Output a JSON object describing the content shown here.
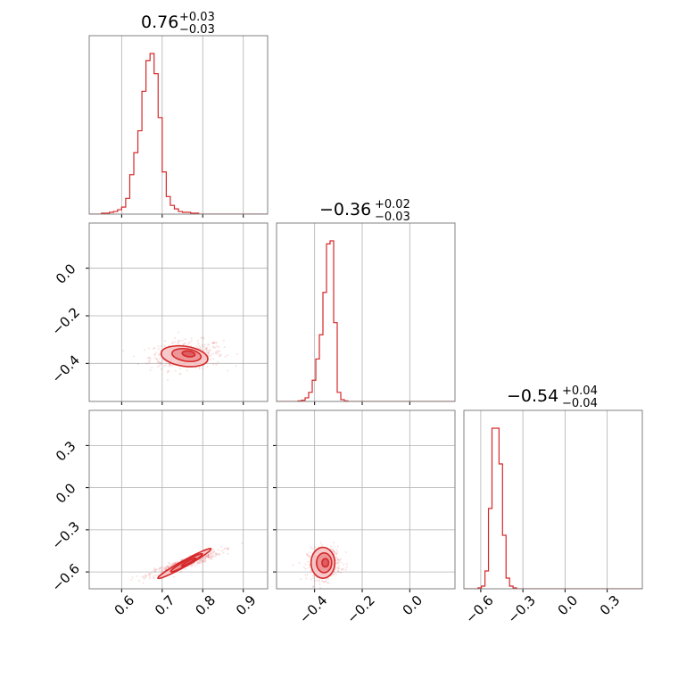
{
  "colors": {
    "accent": "#d62728",
    "fill_light": "#f4c3c4",
    "fill_mid": "#eb8d8f",
    "fill_dark": "#d95558",
    "grid": "#b0b0b0",
    "frame": "#808080"
  },
  "chart_data": {
    "type": "corner",
    "grid": true,
    "parameters": [
      {
        "id": "p0",
        "range": [
          0.52,
          0.96
        ],
        "ticks": [
          0.6,
          0.7,
          0.8,
          0.9
        ],
        "tick_labels": [
          "0.6",
          "0.7",
          "0.8",
          "0.9"
        ]
      },
      {
        "id": "p1",
        "range": [
          -0.56,
          0.19
        ],
        "ticks": [
          -0.4,
          -0.2,
          0.0
        ],
        "tick_labels": [
          "−0.4",
          "−0.2",
          "0.0"
        ]
      },
      {
        "id": "p2",
        "range": [
          -0.72,
          0.55
        ],
        "ticks": [
          -0.6,
          -0.3,
          0.0,
          0.3
        ],
        "tick_labels": [
          "−0.6",
          "−0.3",
          "0.0",
          "0.3"
        ]
      }
    ],
    "titles": [
      {
        "value": "0.76",
        "plus": "+0.03",
        "minus": "−0.03"
      },
      {
        "value": "−0.36",
        "plus": "+0.02",
        "minus": "−0.03"
      },
      {
        "value": "−0.54",
        "plus": "+0.04",
        "minus": "−0.04"
      }
    ],
    "histograms": [
      {
        "param": 0,
        "x_start": 0.52,
        "bin_width": 0.01,
        "counts": [
          0,
          0,
          0,
          1,
          1,
          2,
          3,
          5,
          8,
          18,
          45,
          70,
          95,
          140,
          175,
          183,
          160,
          110,
          48,
          20,
          10,
          6,
          3,
          2,
          2,
          1,
          1,
          0,
          0,
          0,
          0,
          0,
          0,
          0,
          0,
          0,
          0,
          0,
          0,
          0,
          0,
          0,
          0,
          0
        ]
      },
      {
        "param": 1,
        "x_start": -0.56,
        "bin_width": 0.015,
        "counts": [
          0,
          0,
          0,
          0,
          0,
          0,
          1,
          2,
          6,
          15,
          35,
          70,
          110,
          180,
          260,
          265,
          130,
          15,
          3,
          1,
          0,
          0,
          0,
          0,
          0,
          0,
          0,
          0,
          0,
          0,
          0,
          0,
          0,
          0,
          0,
          0,
          0,
          0,
          0,
          0,
          0,
          0,
          0,
          0,
          0,
          0,
          0,
          0,
          0,
          0
        ]
      },
      {
        "param": 2,
        "x_start": -0.72,
        "bin_width": 0.025,
        "counts": [
          0,
          0,
          0,
          0,
          1,
          3,
          20,
          90,
          180,
          180,
          140,
          60,
          12,
          3,
          1,
          0,
          0,
          0,
          0,
          0,
          0,
          0,
          0,
          0,
          0,
          0,
          0,
          0,
          0,
          0,
          0,
          0,
          0,
          0,
          0,
          0,
          0,
          0,
          0,
          0,
          0,
          0,
          0,
          0,
          0,
          0,
          0,
          0,
          0,
          0,
          0
        ]
      }
    ],
    "joint_2d": [
      {
        "x_param": 0,
        "y_param": 1,
        "samples_center": [
          0.76,
          -0.365
        ],
        "samples_spread": [
          0.045,
          0.03
        ],
        "correlation": 0.15,
        "contours": [
          {
            "level": "outer",
            "center": [
              0.755,
              -0.37
            ],
            "radii": [
              0.058,
              0.042
            ],
            "angle_deg": 8
          },
          {
            "level": "middle",
            "center": [
              0.76,
              -0.365
            ],
            "radii": [
              0.036,
              0.026
            ],
            "angle_deg": 8
          },
          {
            "level": "inner",
            "center": [
              0.765,
              -0.36
            ],
            "radii": [
              0.016,
              0.012
            ],
            "angle_deg": 8
          }
        ]
      },
      {
        "x_param": 0,
        "y_param": 2,
        "samples_center": [
          0.755,
          -0.54
        ],
        "samples_spread": [
          0.045,
          0.045
        ],
        "correlation": 0.92,
        "contours": [
          {
            "level": "outer",
            "center": [
              0.755,
              -0.54
            ],
            "radii": [
              0.075,
              0.022
            ],
            "angle_deg": -29
          },
          {
            "level": "middle",
            "center": [
              0.76,
              -0.535
            ],
            "radii": [
              0.045,
              0.016
            ],
            "angle_deg": -29
          },
          {
            "level": "inner",
            "center": [
              0.765,
              -0.53
            ],
            "radii": [
              0.02,
              0.008
            ],
            "angle_deg": -29
          }
        ]
      },
      {
        "x_param": 1,
        "y_param": 2,
        "samples_center": [
          -0.36,
          -0.54
        ],
        "samples_spread": [
          0.035,
          0.055
        ],
        "correlation": 0.1,
        "contours": [
          {
            "level": "outer",
            "center": [
              -0.365,
              -0.535
            ],
            "radii": [
              0.05,
              0.11
            ],
            "angle_deg": 0
          },
          {
            "level": "middle",
            "center": [
              -0.36,
              -0.535
            ],
            "radii": [
              0.032,
              0.07
            ],
            "angle_deg": 0
          },
          {
            "level": "inner",
            "center": [
              -0.355,
              -0.535
            ],
            "radii": [
              0.014,
              0.03
            ],
            "angle_deg": 0
          }
        ]
      }
    ]
  }
}
